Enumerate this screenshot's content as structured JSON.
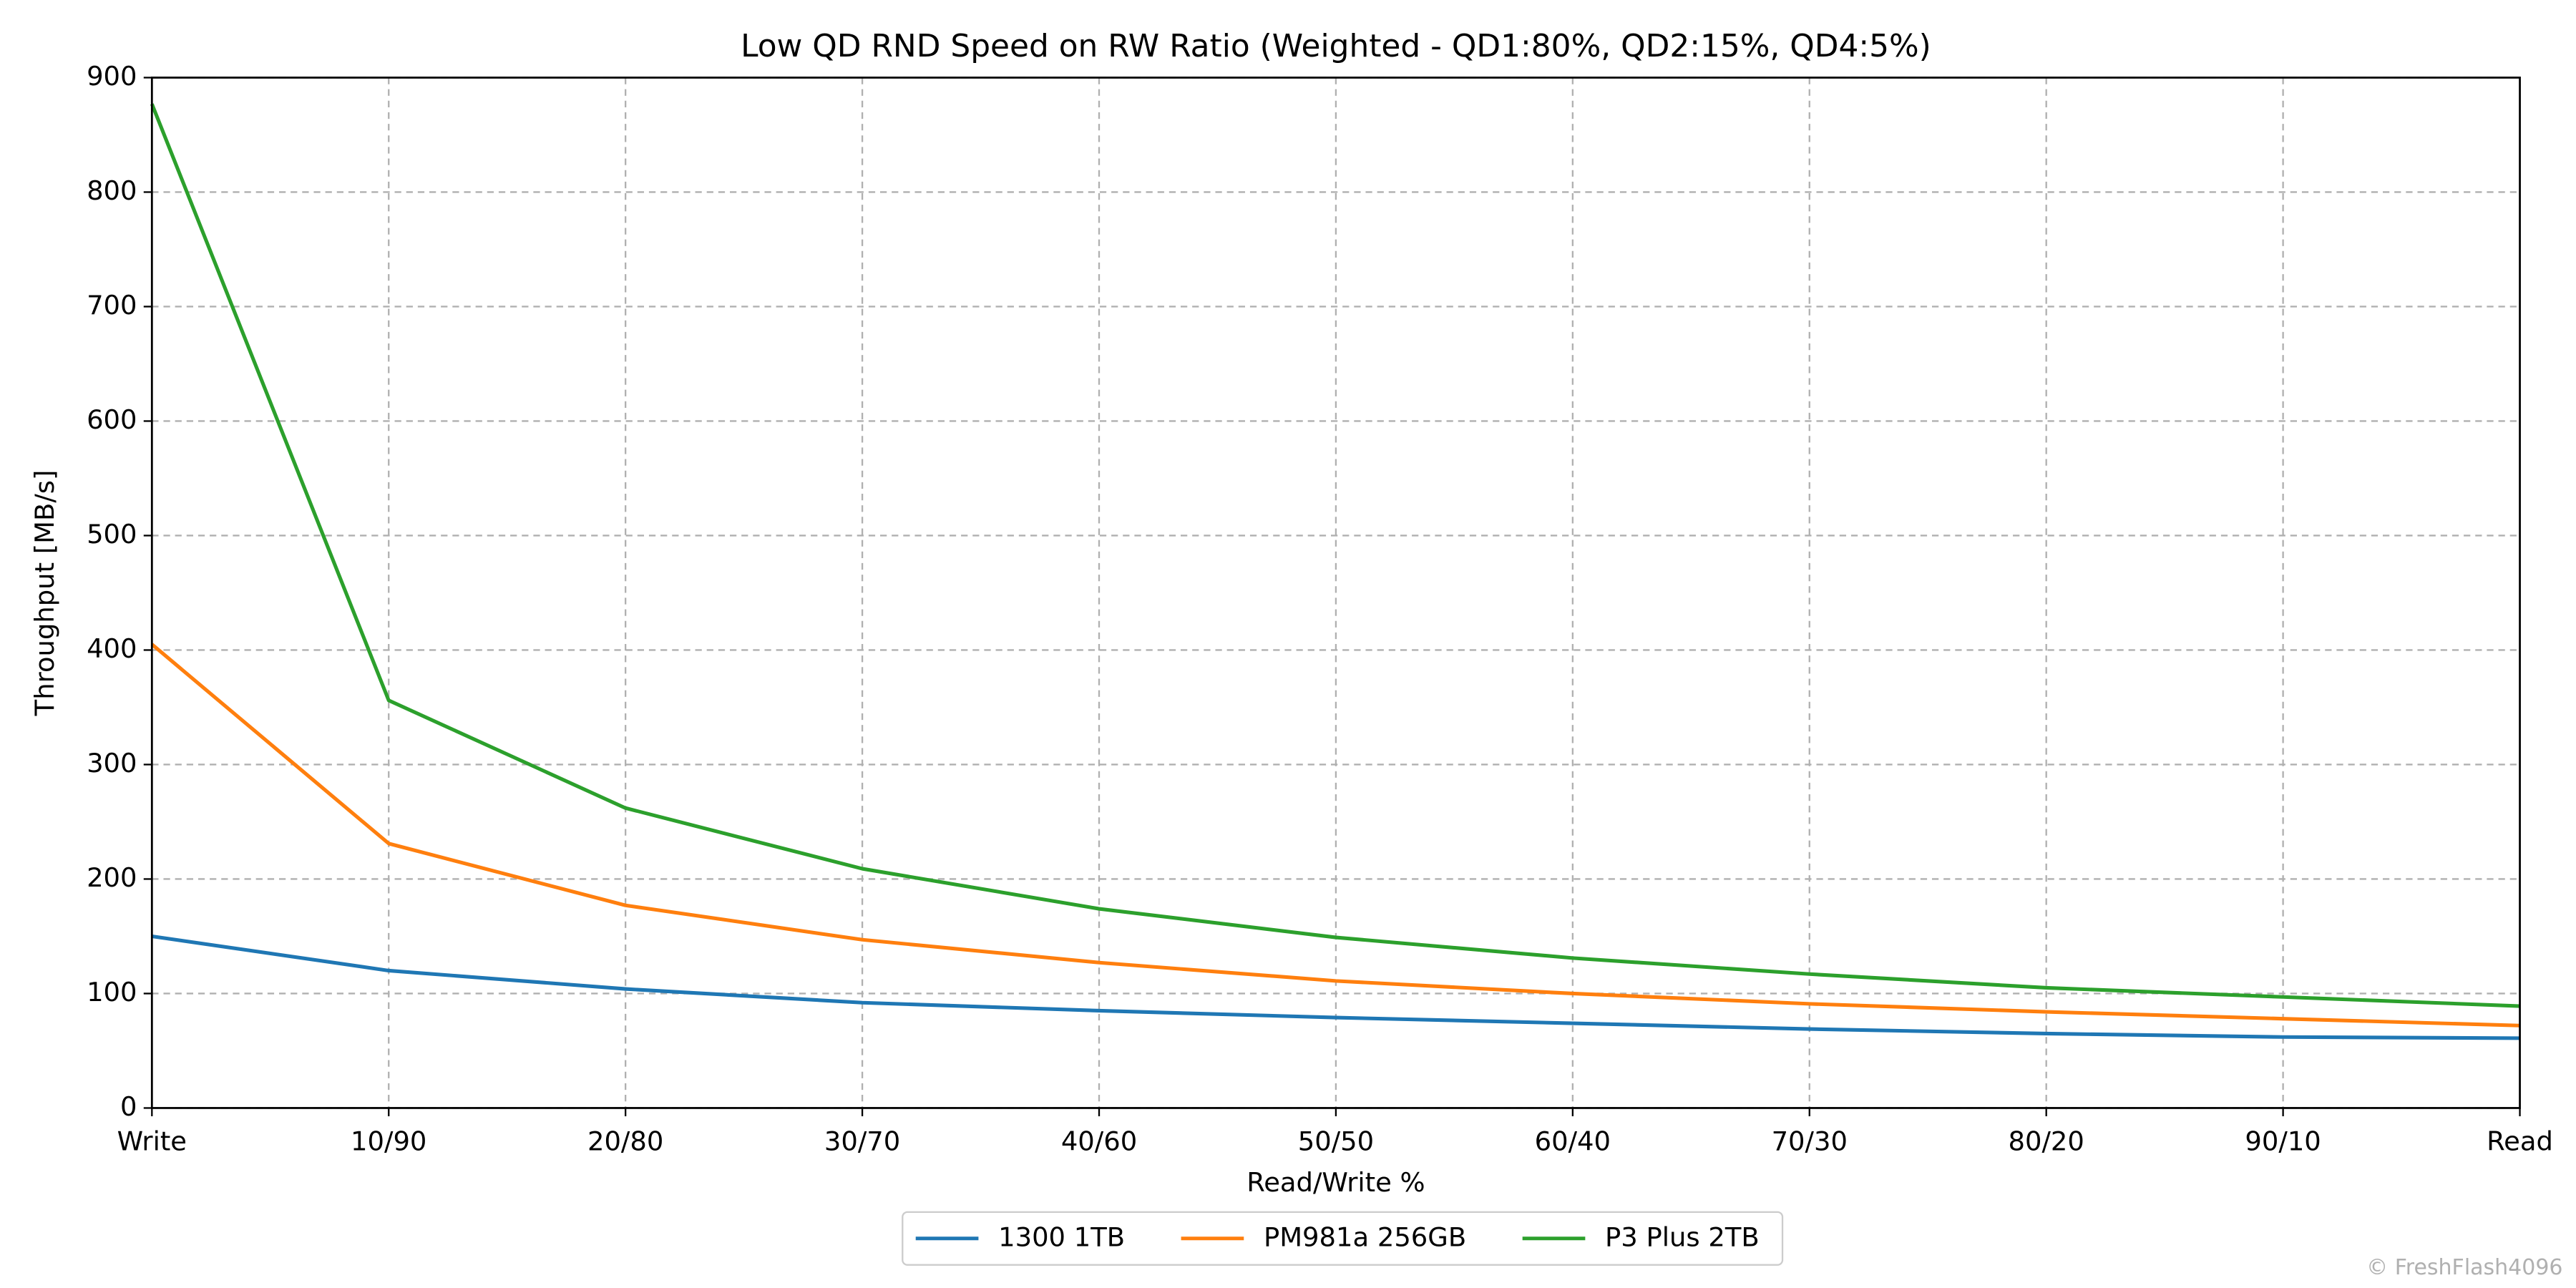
{
  "chart_data": {
    "type": "line",
    "title": "Low QD RND Speed on RW Ratio (Weighted - QD1:80%, QD2:15%, QD4:5%)",
    "x_label": "Read/Write %",
    "y_label": "Throughput [MB/s]",
    "categories": [
      "Write",
      "10/90",
      "20/80",
      "30/70",
      "40/60",
      "50/50",
      "60/40",
      "70/30",
      "80/20",
      "90/10",
      "Read"
    ],
    "series": [
      {
        "name": "1300 1TB",
        "color": "#1f77b4",
        "values": [
          150,
          120,
          104,
          92,
          85,
          79,
          74,
          69,
          65,
          62,
          61
        ]
      },
      {
        "name": "PM981a 256GB",
        "color": "#ff7f0e",
        "values": [
          405,
          231,
          177,
          147,
          127,
          111,
          100,
          91,
          84,
          78,
          72
        ]
      },
      {
        "name": "P3 Plus 2TB",
        "color": "#2ca02c",
        "values": [
          877,
          356,
          262,
          209,
          174,
          149,
          131,
          117,
          105,
          97,
          89
        ]
      }
    ],
    "ylim": [
      0,
      900
    ],
    "yticks": [
      0,
      100,
      200,
      300,
      400,
      500,
      600,
      700,
      800,
      900
    ],
    "grid": true,
    "legend": "bottom",
    "watermark": "© FreshFlash4096"
  }
}
